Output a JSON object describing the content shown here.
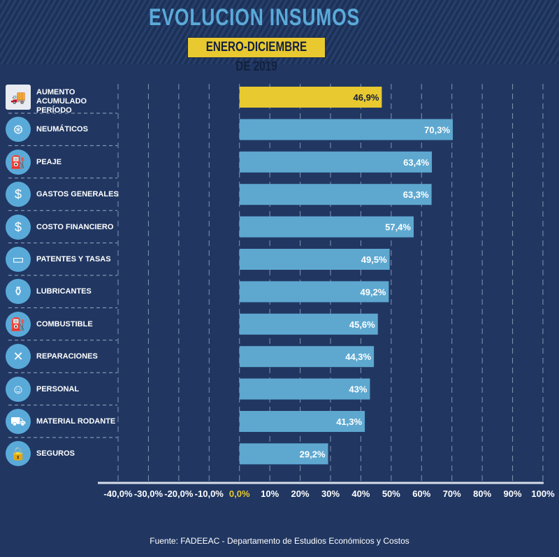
{
  "title": "EVOLUCION INSUMOS",
  "subtitle": "ENERO-DICIEMBRE DE 2019",
  "source": "Fuente: FADEEAC - Departamento de Estudios Económicos y Costos",
  "colors": {
    "highlight": "#e8c930",
    "bar": "#5ea8d0",
    "background": "#213762",
    "title": "#5aaad9"
  },
  "chart_data": {
    "type": "bar",
    "orientation": "horizontal",
    "categories": [
      "AUMENTO ACUMULADO PERÍODO",
      "NEUMÁTICOS",
      "PEAJE",
      "GASTOS GENERALES",
      "COSTO FINANCIERO",
      "PATENTES Y TASAS",
      "LUBRICANTES",
      "COMBUSTIBLE",
      "REPARACIONES",
      "PERSONAL",
      "MATERIAL RODANTE",
      "SEGUROS"
    ],
    "icons": [
      "truck-icon",
      "tire-icon",
      "toll-icon",
      "receipt-icon",
      "money-bag-icon",
      "license-plate-icon",
      "oil-can-icon",
      "fuel-pump-icon",
      "tools-icon",
      "person-icon",
      "truck-side-icon",
      "lock-icon"
    ],
    "values": [
      46.9,
      70.3,
      63.4,
      63.3,
      57.4,
      49.5,
      49.2,
      45.6,
      44.3,
      43,
      41.3,
      29.2
    ],
    "data_labels": [
      "46,9%",
      "70,3%",
      "63,4%",
      "63,3%",
      "57,4%",
      "49,5%",
      "49,2%",
      "45,6%",
      "44,3%",
      "43%",
      "41,3%",
      "29,2%"
    ],
    "xlim": [
      -40,
      100
    ],
    "xticks": [
      -40,
      -30,
      -20,
      -10,
      0,
      10,
      20,
      30,
      40,
      50,
      60,
      70,
      80,
      90,
      100
    ],
    "xtick_labels": [
      "-40,0%",
      "-30,0%",
      "-20,0%",
      "-10,0%",
      "0,0%",
      "10%",
      "20%",
      "30%",
      "40%",
      "50%",
      "60%",
      "70%",
      "80%",
      "90%",
      "100%"
    ],
    "grid": true,
    "highlight_index": 0
  }
}
